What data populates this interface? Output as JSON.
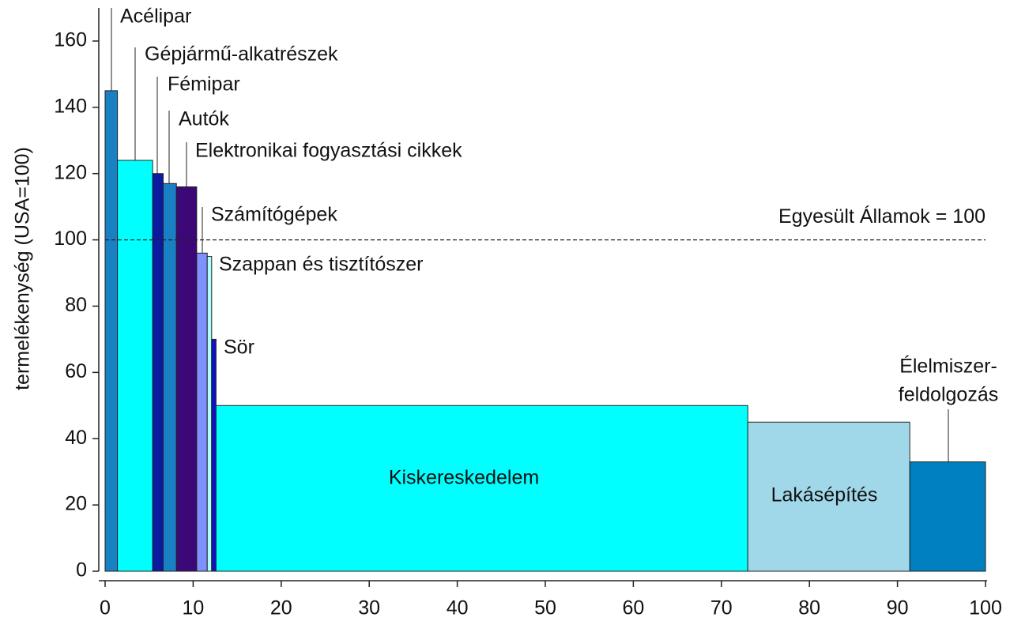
{
  "chart_data": {
    "type": "histogram",
    "ylabel": "termelékenység (USA=100)",
    "categories": [
      "Acélipar",
      "Gépjármű-alkatrészek",
      "Fémipar",
      "Autók",
      "Elektronikai fogyasztási cikkek",
      "Számítógépek",
      "Szappan és tisztítószer",
      "Sör",
      "Kiskereskedelem",
      "Lakásépítés",
      [
        "Élelmiszer-",
        "feldolgozás"
      ]
    ],
    "bins": [
      0,
      1.4,
      5.4,
      6.6,
      8.1,
      10.4,
      11.6,
      12.1,
      12.6,
      73.0,
      91.4,
      100
    ],
    "values": [
      145,
      124,
      120,
      117,
      116,
      96,
      95,
      70,
      50,
      45,
      33
    ],
    "colors": [
      "#1a80c4",
      "#00ffff",
      "#0c1aa0",
      "#1a80c4",
      "#3c0878",
      "#8090ff",
      "#b0ffff",
      "#1010c8",
      "#00ffff",
      "#a0d8ea",
      "#0080c0"
    ],
    "reference_line": {
      "value": 100,
      "label": "Egyesült Államok = 100"
    },
    "xlim": [
      0,
      100
    ],
    "ylim": [
      0,
      170
    ],
    "xticks": [
      0,
      10,
      20,
      30,
      40,
      50,
      60,
      70,
      80,
      90,
      100
    ],
    "yticks": [
      0,
      20,
      40,
      60,
      80,
      100,
      120,
      140,
      160
    ]
  }
}
